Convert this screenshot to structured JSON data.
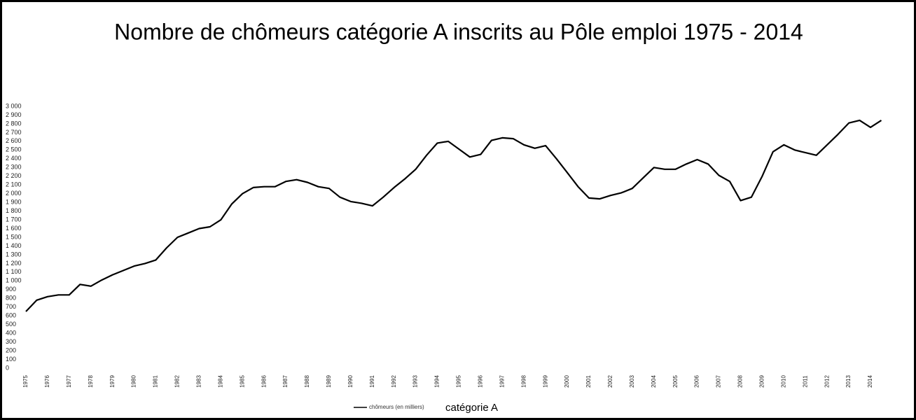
{
  "chart_data": {
    "type": "line",
    "title": "Nombre de chômeurs catégorie A inscrits au Pôle emploi 1975 - 2014",
    "x_label": "catégorie A",
    "x": [
      1975,
      1975.5,
      1976,
      1976.5,
      1977,
      1977.5,
      1978,
      1978.5,
      1979,
      1979.5,
      1980,
      1980.5,
      1981,
      1981.5,
      1982,
      1982.5,
      1983,
      1983.5,
      1984,
      1984.5,
      1985,
      1985.5,
      1986,
      1986.5,
      1987,
      1987.5,
      1988,
      1988.5,
      1989,
      1989.5,
      1990,
      1990.5,
      1991,
      1991.5,
      1992,
      1992.5,
      1993,
      1993.5,
      1994,
      1994.5,
      1995,
      1995.5,
      1996,
      1996.5,
      1997,
      1997.5,
      1998,
      1998.5,
      1999,
      1999.5,
      2000,
      2000.5,
      2001,
      2001.5,
      2002,
      2002.5,
      2003,
      2003.5,
      2004,
      2004.5,
      2005,
      2005.5,
      2006,
      2006.5,
      2007,
      2007.5,
      2008,
      2008.5,
      2009,
      2009.5,
      2010,
      2010.5,
      2011,
      2011.5,
      2012,
      2012.5,
      2013,
      2013.5,
      2014,
      2014.5
    ],
    "series": [
      {
        "name": "chômeurs (en milliers)",
        "color": "#000000",
        "values": [
          650,
          780,
          820,
          840,
          840,
          960,
          940,
          1010,
          1070,
          1120,
          1170,
          1200,
          1240,
          1380,
          1500,
          1550,
          1600,
          1620,
          1700,
          1880,
          2000,
          2070,
          2080,
          2080,
          2140,
          2160,
          2130,
          2080,
          2060,
          1960,
          1910,
          1890,
          1860,
          1960,
          2070,
          2170,
          2280,
          2440,
          2580,
          2600,
          2510,
          2420,
          2450,
          2610,
          2640,
          2630,
          2560,
          2520,
          2550,
          2400,
          2240,
          2080,
          1950,
          1940,
          1980,
          2010,
          2060,
          2180,
          2300,
          2280,
          2280,
          2340,
          2390,
          2340,
          2210,
          2140,
          1920,
          1960,
          2200,
          2480,
          2560,
          2500,
          2470,
          2440,
          2560,
          2680,
          2810,
          2840,
          2760,
          2840
        ]
      }
    ],
    "xlim": [
      1975,
      2014.55
    ],
    "xticks": [
      1975,
      1976,
      1977,
      1978,
      1979,
      1980,
      1981,
      1982,
      1983,
      1984,
      1985,
      1986,
      1987,
      1988,
      1989,
      1990,
      1991,
      1992,
      1993,
      1994,
      1995,
      1996,
      1997,
      1998,
      1999,
      2000,
      2001,
      2002,
      2003,
      2004,
      2005,
      2006,
      2007,
      2008,
      2009,
      2010,
      2011,
      2012,
      2013,
      2014
    ],
    "ylim": [
      0,
      3000
    ],
    "yticks": [
      0,
      100,
      200,
      300,
      400,
      500,
      600,
      700,
      800,
      900,
      {
        "value": 1000,
        "label": "1 000"
      },
      {
        "value": 1100,
        "label": "1 100"
      },
      {
        "value": 1200,
        "label": "1 200"
      },
      {
        "value": 1300,
        "label": "1 300"
      },
      {
        "value": 1400,
        "label": "1 400"
      },
      {
        "value": 1500,
        "label": "1 500"
      },
      {
        "value": 1600,
        "label": "1 600"
      },
      {
        "value": 1700,
        "label": "1 700"
      },
      {
        "value": 1800,
        "label": "1 800"
      },
      {
        "value": 1900,
        "label": "1 900"
      },
      {
        "value": 2000,
        "label": "2 000"
      },
      {
        "value": 2100,
        "label": "2 100"
      },
      {
        "value": 2200,
        "label": "2 200"
      },
      {
        "value": 2300,
        "label": "2 300"
      },
      {
        "value": 2400,
        "label": "2 400"
      },
      {
        "value": 2500,
        "label": "2 500"
      },
      {
        "value": 2600,
        "label": "2 600"
      },
      {
        "value": 2700,
        "label": "2 700"
      },
      {
        "value": 2800,
        "label": "2 800"
      },
      {
        "value": 2900,
        "label": "2 900"
      },
      {
        "value": 3000,
        "label": "3 000"
      }
    ],
    "grid": false
  }
}
